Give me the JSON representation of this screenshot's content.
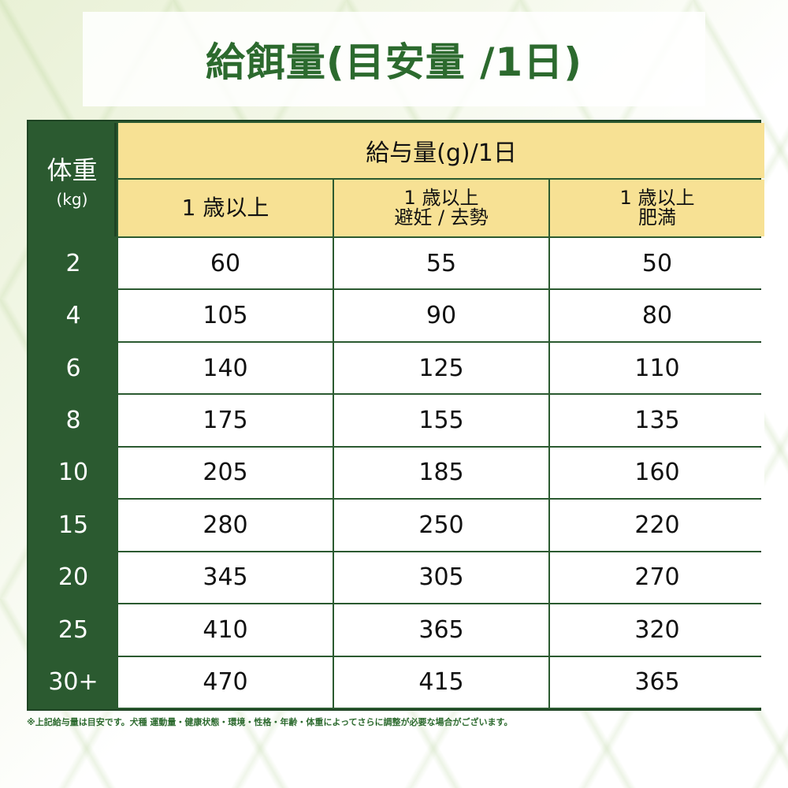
{
  "title": "給餌量(目安量 /1日)",
  "table": {
    "weight_header": "体重",
    "weight_unit": "(kg)",
    "amount_header": "給与量(g)/1日",
    "columns": [
      {
        "line1": "1 歳以上",
        "line2": ""
      },
      {
        "line1": "1 歳以上",
        "line2": "避妊 / 去勢"
      },
      {
        "line1": "1 歳以上",
        "line2": "肥満"
      }
    ],
    "rows": [
      {
        "weight": "2",
        "values": [
          "60",
          "55",
          "50"
        ]
      },
      {
        "weight": "4",
        "values": [
          "105",
          "90",
          "80"
        ]
      },
      {
        "weight": "6",
        "values": [
          "140",
          "125",
          "110"
        ]
      },
      {
        "weight": "8",
        "values": [
          "175",
          "155",
          "135"
        ]
      },
      {
        "weight": "10",
        "values": [
          "205",
          "185",
          "160"
        ]
      },
      {
        "weight": "15",
        "values": [
          "280",
          "250",
          "220"
        ]
      },
      {
        "weight": "20",
        "values": [
          "345",
          "305",
          "270"
        ]
      },
      {
        "weight": "25",
        "values": [
          "410",
          "365",
          "320"
        ]
      },
      {
        "weight": "30+",
        "values": [
          "470",
          "415",
          "365"
        ]
      }
    ]
  },
  "footnote": "※上記給与量は目安です。犬種 運動量・健康状態・環境・性格・年齢・体重によってさらに調整が必要な場合がございます。",
  "colors": {
    "dark_green": "#2b5a30",
    "header_yellow": "#f7e194",
    "title_green": "#2c6a2e"
  }
}
